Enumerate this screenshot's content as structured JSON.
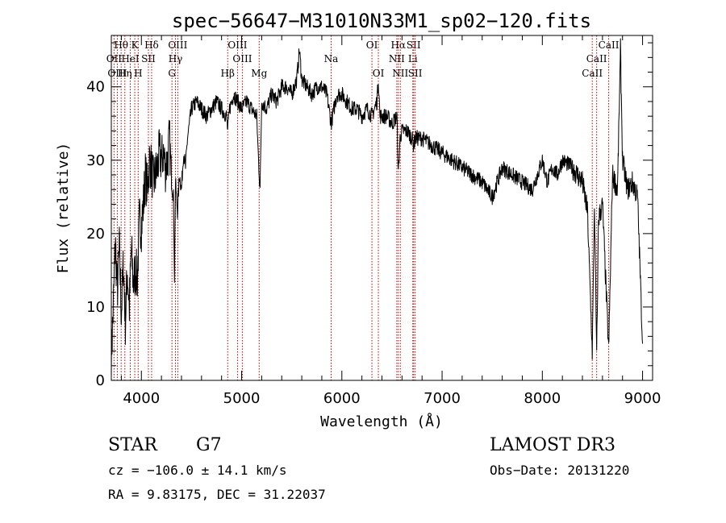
{
  "chart_data": {
    "type": "line",
    "title": "spec−56647−M31010N33M1_sp02−120.fits",
    "xlabel": "Wavelength (Å)",
    "ylabel": "Flux (relative)",
    "xlim": [
      3700,
      9100
    ],
    "ylim": [
      0,
      47
    ],
    "xticks": [
      4000,
      5000,
      6000,
      7000,
      8000,
      9000
    ],
    "yticks": [
      0,
      10,
      20,
      30,
      40
    ],
    "series": [
      {
        "name": "spectrum",
        "x": [
          3700,
          3720,
          3740,
          3760,
          3780,
          3800,
          3820,
          3840,
          3860,
          3880,
          3900,
          3920,
          3940,
          3960,
          3980,
          4000,
          4020,
          4040,
          4060,
          4080,
          4100,
          4120,
          4140,
          4160,
          4180,
          4200,
          4220,
          4240,
          4260,
          4280,
          4300,
          4320,
          4330,
          4340,
          4360,
          4380,
          4400,
          4420,
          4440,
          4460,
          4480,
          4500,
          4550,
          4600,
          4650,
          4700,
          4750,
          4800,
          4850,
          4861,
          4880,
          4920,
          4960,
          5000,
          5050,
          5100,
          5150,
          5172,
          5184,
          5200,
          5250,
          5300,
          5350,
          5400,
          5450,
          5500,
          5550,
          5577,
          5600,
          5650,
          5700,
          5750,
          5800,
          5850,
          5893,
          5950,
          6000,
          6050,
          6100,
          6150,
          6200,
          6250,
          6300,
          6350,
          6364,
          6380,
          6450,
          6500,
          6550,
          6563,
          6580,
          6600,
          6650,
          6700,
          6716,
          6731,
          6800,
          6900,
          7000,
          7100,
          7200,
          7300,
          7400,
          7500,
          7600,
          7700,
          7800,
          7900,
          8000,
          8050,
          8100,
          8150,
          8200,
          8300,
          8400,
          8450,
          8498,
          8520,
          8542,
          8560,
          8600,
          8662,
          8700,
          8750,
          8780,
          8800,
          8850,
          8900,
          8950,
          9000
        ],
        "y": [
          3,
          10,
          19,
          12,
          18,
          9,
          16,
          8,
          15,
          10,
          18,
          13,
          15,
          14,
          22,
          21,
          24,
          28,
          26,
          30,
          29,
          27,
          28,
          29,
          31,
          30,
          31,
          29,
          30,
          33,
          27,
          25,
          14,
          27,
          23,
          28,
          26,
          31,
          29,
          33,
          35,
          37,
          38,
          37,
          36,
          37,
          38,
          37,
          36,
          34,
          37,
          39,
          38,
          37,
          38,
          37,
          36,
          29,
          26,
          38,
          37,
          39,
          38,
          40,
          40,
          39,
          41,
          45,
          41,
          40,
          39,
          40,
          40,
          39,
          35,
          39,
          39,
          38,
          37,
          37,
          36,
          37,
          36,
          38,
          41,
          36,
          36,
          35,
          36,
          28,
          33,
          34,
          34,
          33,
          32,
          33,
          33,
          32,
          31,
          30,
          29,
          28,
          27,
          25,
          29,
          28,
          27,
          26,
          30,
          27,
          29,
          28,
          30,
          29,
          27,
          23,
          4,
          24,
          3,
          22,
          24,
          4,
          28,
          26,
          45,
          30,
          26,
          27,
          25,
          5
        ]
      }
    ],
    "spectral_lines": [
      {
        "label": "Hθ",
        "wavelength": 3798,
        "row": 1
      },
      {
        "label": "K",
        "wavelength": 3934,
        "row": 1
      },
      {
        "label": "Hδ",
        "wavelength": 4102,
        "row": 1
      },
      {
        "label": "OIII",
        "wavelength": 4363,
        "row": 1
      },
      {
        "label": "OIII",
        "wavelength": 4959,
        "row": 1
      },
      {
        "label": "OI",
        "wavelength": 6300,
        "row": 1
      },
      {
        "label": "Hα",
        "wavelength": 6563,
        "row": 1
      },
      {
        "label": "SII",
        "wavelength": 6716,
        "row": 1
      },
      {
        "label": "CaII",
        "wavelength": 8662,
        "row": 1
      },
      {
        "label": "OII",
        "wavelength": 3727,
        "row": 2
      },
      {
        "label": "HeI",
        "wavelength": 3889,
        "row": 2
      },
      {
        "label": "SII",
        "wavelength": 4070,
        "row": 2
      },
      {
        "label": "Hγ",
        "wavelength": 4340,
        "row": 2
      },
      {
        "label": "OIII",
        "wavelength": 5007,
        "row": 2
      },
      {
        "label": "Na",
        "wavelength": 5893,
        "row": 2
      },
      {
        "label": "NII",
        "wavelength": 6548,
        "row": 2
      },
      {
        "label": "Li",
        "wavelength": 6708,
        "row": 2
      },
      {
        "label": "CaII",
        "wavelength": 8542,
        "row": 2
      },
      {
        "label": "OIII",
        "wavelength": 3760,
        "row": 3
      },
      {
        "label": "Hη",
        "wavelength": 3835,
        "row": 3
      },
      {
        "label": "H",
        "wavelength": 3968,
        "row": 3
      },
      {
        "label": "G",
        "wavelength": 4305,
        "row": 3
      },
      {
        "label": "Hβ",
        "wavelength": 4861,
        "row": 3
      },
      {
        "label": "Mg",
        "wavelength": 5175,
        "row": 3
      },
      {
        "label": "OI",
        "wavelength": 6364,
        "row": 3
      },
      {
        "label": "NII",
        "wavelength": 6583,
        "row": 3
      },
      {
        "label": "SII",
        "wavelength": 6731,
        "row": 3
      },
      {
        "label": "CaII",
        "wavelength": 8498,
        "row": 3
      }
    ]
  },
  "info": {
    "object_class": "STAR",
    "subclass": "G7",
    "survey": "LAMOST DR3",
    "cz": "cz = −106.0 ± 14.1 km/s",
    "obs_date": "Obs−Date: 20131220",
    "coords": "RA =   9.83175, DEC =  31.22037"
  },
  "colors": {
    "axis": "#000000",
    "spectrum": "#000000",
    "line_marker": "#c00000"
  }
}
